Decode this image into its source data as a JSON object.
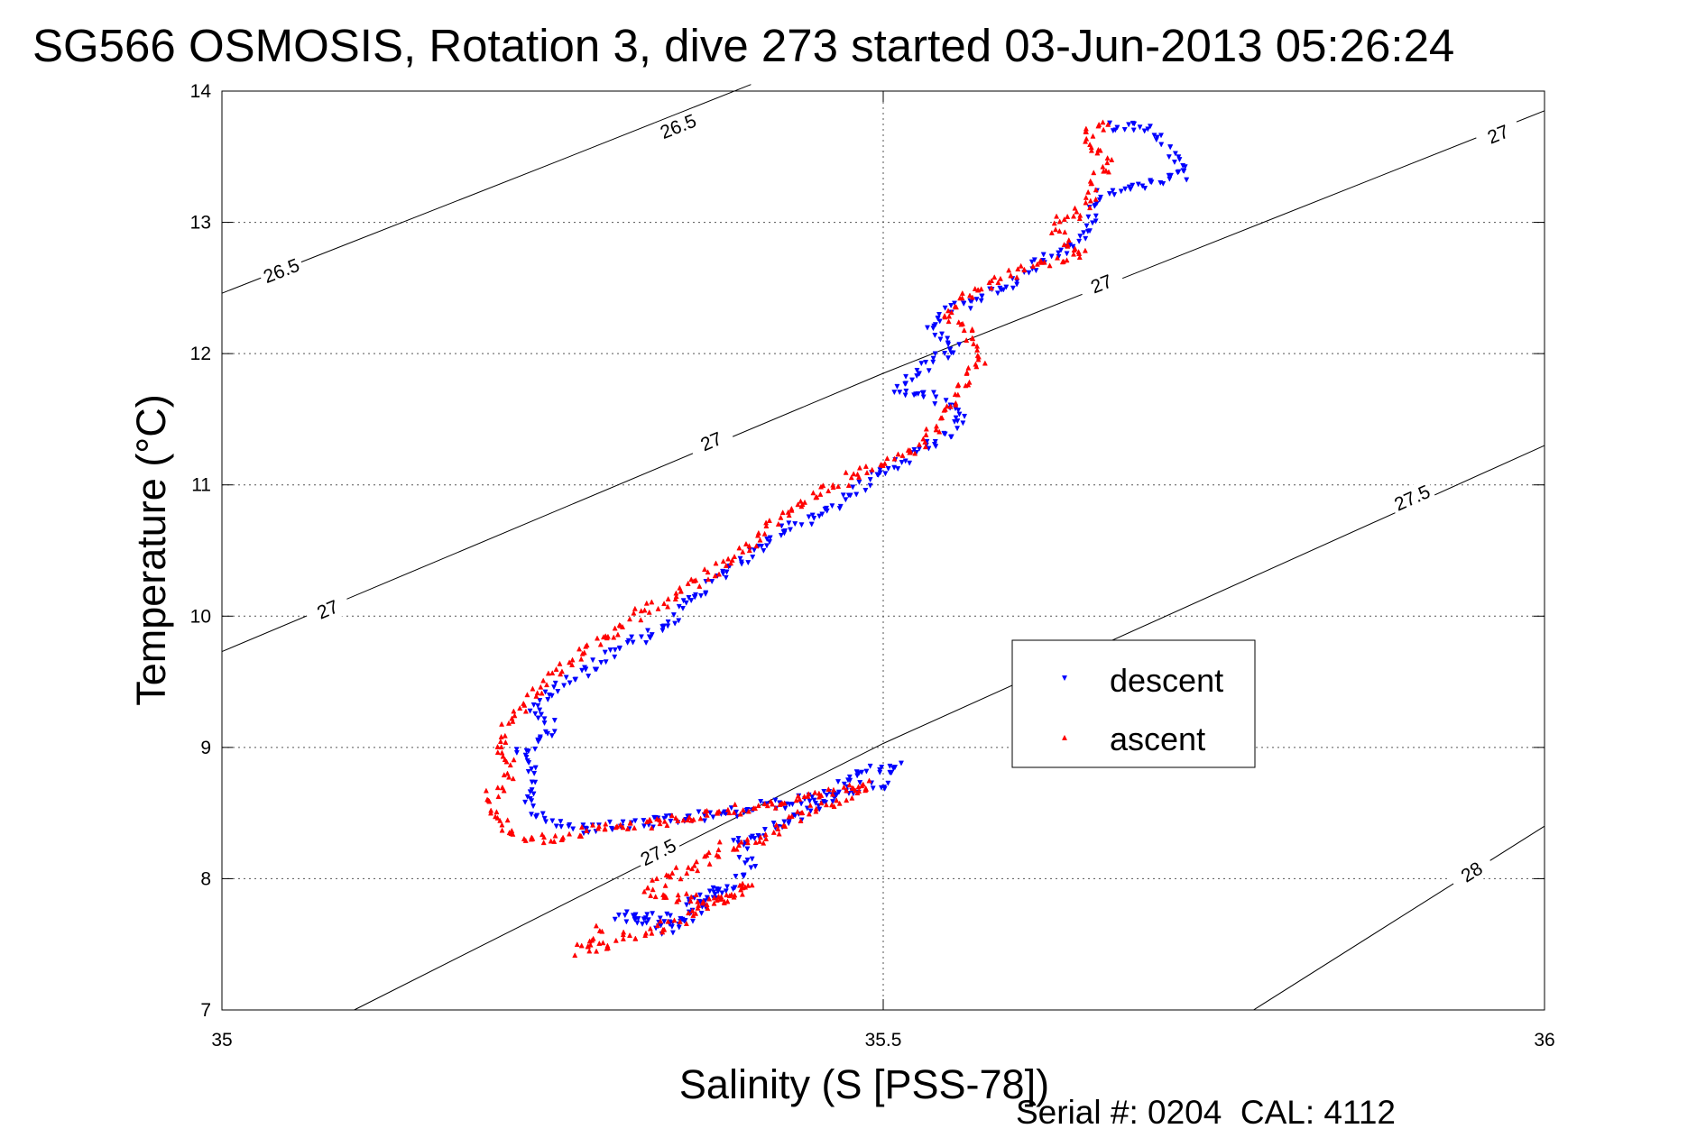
{
  "chart_data": {
    "type": "scatter",
    "title": "SG566 OSMOSIS, Rotation 3, dive 273 started 03-Jun-2013 05:26:24",
    "xlabel": "Salinity (S [PSS-78])",
    "ylabel": "Temperature (°C)",
    "xlim": [
      35,
      36
    ],
    "ylim": [
      7,
      14
    ],
    "xticks": [
      35,
      35.5,
      36
    ],
    "xtick_labels": [
      "35",
      "35.5",
      "36"
    ],
    "yticks": [
      7,
      8,
      9,
      10,
      11,
      12,
      13,
      14
    ],
    "ytick_labels": [
      "7",
      "8",
      "9",
      "10",
      "11",
      "12",
      "13",
      "14"
    ],
    "grid": true,
    "legend_position": "right-center",
    "footer": "Serial #: 0204  CAL: 4112",
    "colors": {
      "descent": "#0000ff",
      "ascent": "#ff0000",
      "axes": "#000000"
    },
    "contours": [
      {
        "level": "26.5",
        "points": [
          [
            35,
            12.46
          ],
          [
            35.25,
            13.45
          ],
          [
            35.4,
            14.05
          ]
        ],
        "labels": [
          [
            35.045,
            12.63
          ],
          [
            35.345,
            13.73
          ]
        ]
      },
      {
        "level": "27",
        "points": [
          [
            35,
            9.73
          ],
          [
            35.5,
            11.85
          ],
          [
            36,
            13.85
          ]
        ],
        "labels": [
          [
            35.08,
            10.05
          ],
          [
            35.37,
            11.33
          ],
          [
            35.665,
            12.53
          ],
          [
            35.965,
            13.67
          ]
        ]
      },
      {
        "level": "27.5",
        "points": [
          [
            35.1,
            7.0
          ],
          [
            35.5,
            9.03
          ],
          [
            36,
            11.3
          ]
        ],
        "labels": [
          [
            35.33,
            8.2
          ],
          [
            35.9,
            10.9
          ]
        ]
      },
      {
        "level": "28",
        "points": [
          [
            35.78,
            7.0
          ],
          [
            36,
            8.4
          ]
        ],
        "labels": [
          [
            35.945,
            8.05
          ]
        ]
      }
    ],
    "series": [
      {
        "name": "descent",
        "marker": "triangle-down",
        "path": [
          [
            35.67,
            13.74
          ],
          [
            35.7,
            13.72
          ],
          [
            35.715,
            13.55
          ],
          [
            35.73,
            13.36
          ],
          [
            35.69,
            13.28
          ],
          [
            35.665,
            13.22
          ],
          [
            35.66,
            13.1
          ],
          [
            35.655,
            12.95
          ],
          [
            35.645,
            12.83
          ],
          [
            35.62,
            12.7
          ],
          [
            35.6,
            12.55
          ],
          [
            35.57,
            12.4
          ],
          [
            35.545,
            12.33
          ],
          [
            35.535,
            12.22
          ],
          [
            35.555,
            12.05
          ],
          [
            35.54,
            11.95
          ],
          [
            35.51,
            11.73
          ],
          [
            35.545,
            11.65
          ],
          [
            35.56,
            11.5
          ],
          [
            35.545,
            11.35
          ],
          [
            35.52,
            11.2
          ],
          [
            35.49,
            11.03
          ],
          [
            35.465,
            10.85
          ],
          [
            35.435,
            10.7
          ],
          [
            35.41,
            10.55
          ],
          [
            35.385,
            10.35
          ],
          [
            35.365,
            10.2
          ],
          [
            35.35,
            10.1
          ],
          [
            35.34,
            9.95
          ],
          [
            35.32,
            9.85
          ],
          [
            35.3,
            9.75
          ],
          [
            35.28,
            9.62
          ],
          [
            35.25,
            9.45
          ],
          [
            35.235,
            9.3
          ],
          [
            35.25,
            9.15
          ],
          [
            35.24,
            9.05
          ],
          [
            35.225,
            8.95
          ],
          [
            35.235,
            8.8
          ],
          [
            35.23,
            8.68
          ],
          [
            35.235,
            8.53
          ],
          [
            35.25,
            8.42
          ],
          [
            35.27,
            8.38
          ],
          [
            35.3,
            8.4
          ],
          [
            35.34,
            8.44
          ],
          [
            35.38,
            8.49
          ],
          [
            35.41,
            8.55
          ],
          [
            35.44,
            8.6
          ],
          [
            35.47,
            8.65
          ],
          [
            35.5,
            8.73
          ],
          [
            35.51,
            8.85
          ],
          [
            35.48,
            8.82
          ],
          [
            35.46,
            8.6
          ],
          [
            35.44,
            8.5
          ],
          [
            35.41,
            8.35
          ],
          [
            35.39,
            8.28
          ],
          [
            35.4,
            8.1
          ],
          [
            35.39,
            7.96
          ],
          [
            35.35,
            7.8
          ],
          [
            35.35,
            7.68
          ],
          [
            35.3,
            7.72
          ],
          [
            35.34,
            7.6
          ],
          [
            35.38,
            7.92
          ]
        ]
      },
      {
        "name": "ascent",
        "marker": "triangle-up",
        "path": [
          [
            35.67,
            13.74
          ],
          [
            35.65,
            13.67
          ],
          [
            35.67,
            13.45
          ],
          [
            35.66,
            13.3
          ],
          [
            35.655,
            13.1
          ],
          [
            35.635,
            13.02
          ],
          [
            35.63,
            12.92
          ],
          [
            35.65,
            12.78
          ],
          [
            35.625,
            12.7
          ],
          [
            35.6,
            12.62
          ],
          [
            35.58,
            12.52
          ],
          [
            35.56,
            12.42
          ],
          [
            35.545,
            12.3
          ],
          [
            35.565,
            12.2
          ],
          [
            35.565,
            12.05
          ],
          [
            35.575,
            11.97
          ],
          [
            35.565,
            11.83
          ],
          [
            35.555,
            11.7
          ],
          [
            35.545,
            11.55
          ],
          [
            35.54,
            11.43
          ],
          [
            35.53,
            11.3
          ],
          [
            35.51,
            11.2
          ],
          [
            35.48,
            11.08
          ],
          [
            35.455,
            10.95
          ],
          [
            35.43,
            10.8
          ],
          [
            35.41,
            10.65
          ],
          [
            35.395,
            10.52
          ],
          [
            35.38,
            10.4
          ],
          [
            35.355,
            10.25
          ],
          [
            35.34,
            10.12
          ],
          [
            35.32,
            10.05
          ],
          [
            35.3,
            9.9
          ],
          [
            35.28,
            9.8
          ],
          [
            35.27,
            9.7
          ],
          [
            35.25,
            9.55
          ],
          [
            35.23,
            9.35
          ],
          [
            35.215,
            9.15
          ],
          [
            35.21,
            8.98
          ],
          [
            35.22,
            8.9
          ],
          [
            35.215,
            8.75
          ],
          [
            35.2,
            8.6
          ],
          [
            35.21,
            8.45
          ],
          [
            35.22,
            8.33
          ],
          [
            35.24,
            8.3
          ],
          [
            35.28,
            8.37
          ],
          [
            35.32,
            8.42
          ],
          [
            35.36,
            8.48
          ],
          [
            35.4,
            8.55
          ],
          [
            35.44,
            8.6
          ],
          [
            35.47,
            8.67
          ],
          [
            35.49,
            8.72
          ],
          [
            35.46,
            8.58
          ],
          [
            35.43,
            8.45
          ],
          [
            35.41,
            8.32
          ],
          [
            35.38,
            8.24
          ],
          [
            35.36,
            8.1
          ],
          [
            35.34,
            8.02
          ],
          [
            35.32,
            7.92
          ],
          [
            35.35,
            7.85
          ],
          [
            35.38,
            7.85
          ],
          [
            35.4,
            7.95
          ],
          [
            35.36,
            7.75
          ],
          [
            35.33,
            7.62
          ],
          [
            35.3,
            7.55
          ],
          [
            35.29,
            7.48
          ],
          [
            35.27,
            7.45
          ],
          [
            35.29,
            7.65
          ]
        ]
      }
    ]
  }
}
